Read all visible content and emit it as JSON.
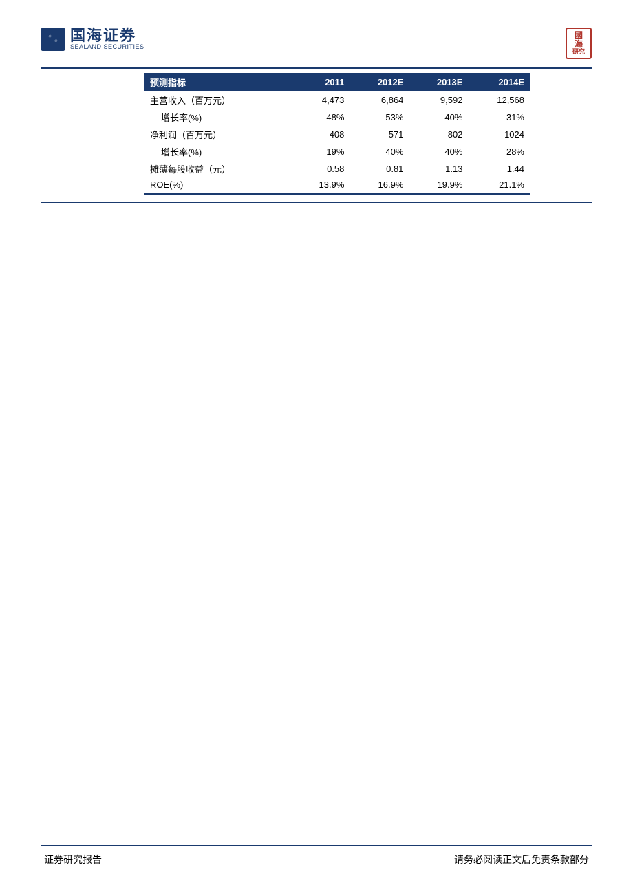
{
  "logo": {
    "cn": "国海证券",
    "en": "SEALAND SECURITIES"
  },
  "seal": {
    "line1": "國",
    "line2": "海",
    "line3": "研究"
  },
  "table": {
    "header_bg": "#1a3a6e",
    "header_fg": "#ffffff",
    "columns": [
      "预测指标",
      "2011",
      "2012E",
      "2013E",
      "2014E"
    ],
    "rows": [
      {
        "label": "主营收入（百万元）",
        "v": [
          "4,473",
          "6,864",
          "9,592",
          "12,568"
        ],
        "indent": false
      },
      {
        "label": "增长率(%)",
        "v": [
          "48%",
          "53%",
          "40%",
          "31%"
        ],
        "indent": true
      },
      {
        "label": "净利润（百万元）",
        "v": [
          "408",
          "571",
          "802",
          "1024"
        ],
        "indent": false
      },
      {
        "label": "增长率(%)",
        "v": [
          "19%",
          "40%",
          "40%",
          "28%"
        ],
        "indent": true
      },
      {
        "label": "摊薄每股收益（元）",
        "v": [
          "0.58",
          "0.81",
          "1.13",
          "1.44"
        ],
        "indent": false
      },
      {
        "label": "ROE(%)",
        "v": [
          "13.9%",
          "16.9%",
          "19.9%",
          "21.1%"
        ],
        "indent": false
      }
    ]
  },
  "footer": {
    "left": "证券研究报告",
    "right": "请务必阅读正文后免责条款部分"
  }
}
